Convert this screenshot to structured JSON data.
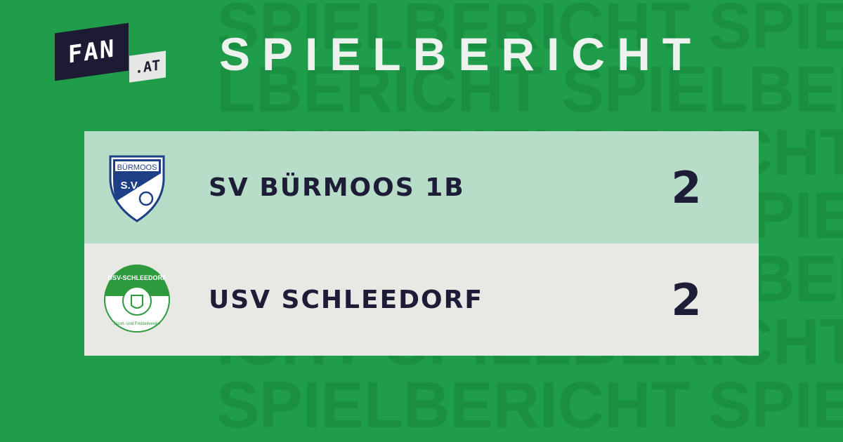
{
  "brand": {
    "logo_main": "FAN",
    "logo_suffix": ".AT"
  },
  "header": {
    "title": "SPIELBERICHT"
  },
  "background": {
    "watermark_word": "SPIELBERICHT",
    "color": "#1f9d4b"
  },
  "match": {
    "home": {
      "name": "SV BÜRMOOS 1B",
      "score": "2",
      "crest_text": "BÜRMOOS",
      "crest_sub": "S.V.",
      "row_color": "#b7dcc8"
    },
    "away": {
      "name": "USV SCHLEEDORF",
      "score": "2",
      "crest_text": "USV-SCHLEEDORF",
      "crest_sub": "Sport- und Freizeitverein",
      "row_color": "#e8e8e5"
    }
  }
}
